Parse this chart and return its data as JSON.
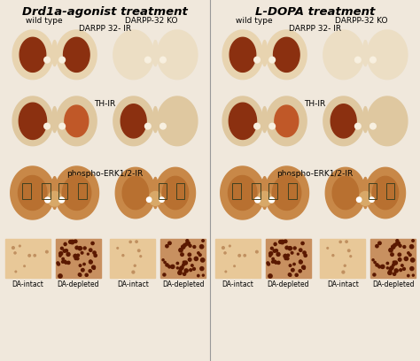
{
  "title_left": "Drd1a-agonist treatment",
  "title_right": "L-DOPA treatment",
  "bg_color": "#f0e8dc",
  "label_wildtype": "wild type",
  "label_ko": "DARPP-32 KO",
  "label_darpp": "DARPP 32- IR",
  "label_th": "TH-IR",
  "label_phospho": "phospho-ERK1/2-IR",
  "bottom_labels": [
    "DA-intact",
    "DA-depleted",
    "DA-intact",
    "DA-depleted"
  ],
  "font_size_title": 9.5,
  "font_size_label": 6.5,
  "font_size_bottom": 5.5,
  "colors": {
    "brain_outer": "#e8d4b0",
    "brain_outer2": "#dfc8a0",
    "dark_stain": "#8b3010",
    "medium_stain": "#c05828",
    "light_stain": "#d4845a",
    "very_light": "#f0e4cc",
    "white_hole": "#f8f0e0",
    "inset_light_bg": "#e8c898",
    "inset_dark_bg": "#c89060",
    "dot_dark": "#5a1800",
    "phospho_outer": "#c87840",
    "phospho_mid": "#b86030",
    "box_color": "#404020",
    "divider": "#aaaaaa"
  }
}
